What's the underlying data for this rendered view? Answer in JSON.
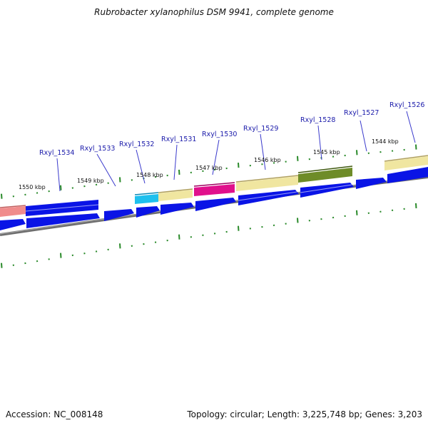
{
  "title": "Rubrobacter xylanophilus DSM 9941, complete genome",
  "accession": "Accession: NC_008148",
  "summary": "Topology: circular; Length: 3,225,748 bp; Genes: 3,203",
  "colors": {
    "gene_blue": "#0a14e6",
    "tick_green": "#2a8a2a",
    "backbone": "#808080",
    "cds_salmon": "#f08c8c",
    "cds_cyan": "#1ec0ee",
    "cds_khaki": "#f0e6a0",
    "cds_magenta": "#e0108c",
    "cds_olive": "#6e8c28",
    "label_blue": "#1a1aaa"
  },
  "kbp_labels": [
    "1550 kbp",
    "1549 kbp",
    "1548 kbp",
    "1547 kbp",
    "1546 kbp",
    "1545 kbp",
    "1544 kbp"
  ],
  "gene_labels": [
    "Rxyl_1534",
    "Rxyl_1533",
    "Rxyl_1532",
    "Rxyl_1531",
    "Rxyl_1530",
    "Rxyl_1529",
    "Rxyl_1528",
    "Rxyl_1527",
    "Rxyl_1526"
  ]
}
